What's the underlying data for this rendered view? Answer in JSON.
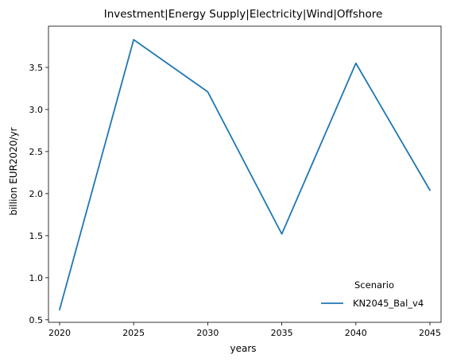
{
  "chart_data": {
    "type": "line",
    "title": "Investment|Energy Supply|Electricity|Wind|Offshore",
    "xlabel": "years",
    "ylabel": "billion EUR2020/yr",
    "x": [
      2020,
      2025,
      2030,
      2035,
      2040,
      2045
    ],
    "x_ticks": [
      "2020",
      "2025",
      "2030",
      "2035",
      "2040",
      "2045"
    ],
    "y_ticks": [
      "0.5",
      "1.0",
      "1.5",
      "2.0",
      "2.5",
      "3.0",
      "3.5"
    ],
    "xlim": [
      2019.25,
      2045.75
    ],
    "ylim": [
      0.47,
      3.99
    ],
    "grid": false,
    "legend": {
      "title": "Scenario",
      "placement": "lower-right"
    },
    "series": [
      {
        "name": "KN2045_Bal_v4",
        "color": "#1f77b4",
        "values": [
          0.62,
          3.83,
          3.21,
          1.52,
          3.55,
          2.04
        ]
      }
    ]
  }
}
